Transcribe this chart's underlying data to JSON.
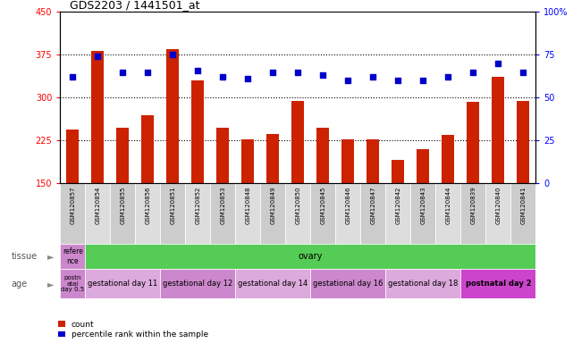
{
  "title": "GDS2203 / 1441501_at",
  "samples": [
    "GSM120857",
    "GSM120854",
    "GSM120855",
    "GSM120856",
    "GSM120851",
    "GSM120852",
    "GSM120853",
    "GSM120848",
    "GSM120849",
    "GSM120850",
    "GSM120845",
    "GSM120846",
    "GSM120847",
    "GSM120842",
    "GSM120843",
    "GSM120844",
    "GSM120839",
    "GSM120840",
    "GSM120841"
  ],
  "counts": [
    245,
    382,
    247,
    270,
    385,
    330,
    248,
    228,
    237,
    295,
    247,
    228,
    228,
    192,
    210,
    235,
    293,
    337,
    295
  ],
  "percentiles": [
    62,
    74,
    65,
    65,
    75,
    66,
    62,
    61,
    65,
    65,
    63,
    60,
    62,
    60,
    60,
    62,
    65,
    70,
    65
  ],
  "ylim_left": [
    150,
    450
  ],
  "ylim_right": [
    0,
    100
  ],
  "yticks_left": [
    150,
    225,
    300,
    375,
    450
  ],
  "yticks_right": [
    0,
    25,
    50,
    75,
    100
  ],
  "bar_color": "#cc2200",
  "dot_color": "#0000cc",
  "tissue_ref_color": "#cc88cc",
  "tissue_ovary_color": "#55cc55",
  "age_colors": [
    "#cc88cc",
    "#ddaadd",
    "#cc88cc",
    "#ddaadd",
    "#cc88cc",
    "#ddaadd",
    "#cc44cc"
  ],
  "background_color": "#ffffff"
}
